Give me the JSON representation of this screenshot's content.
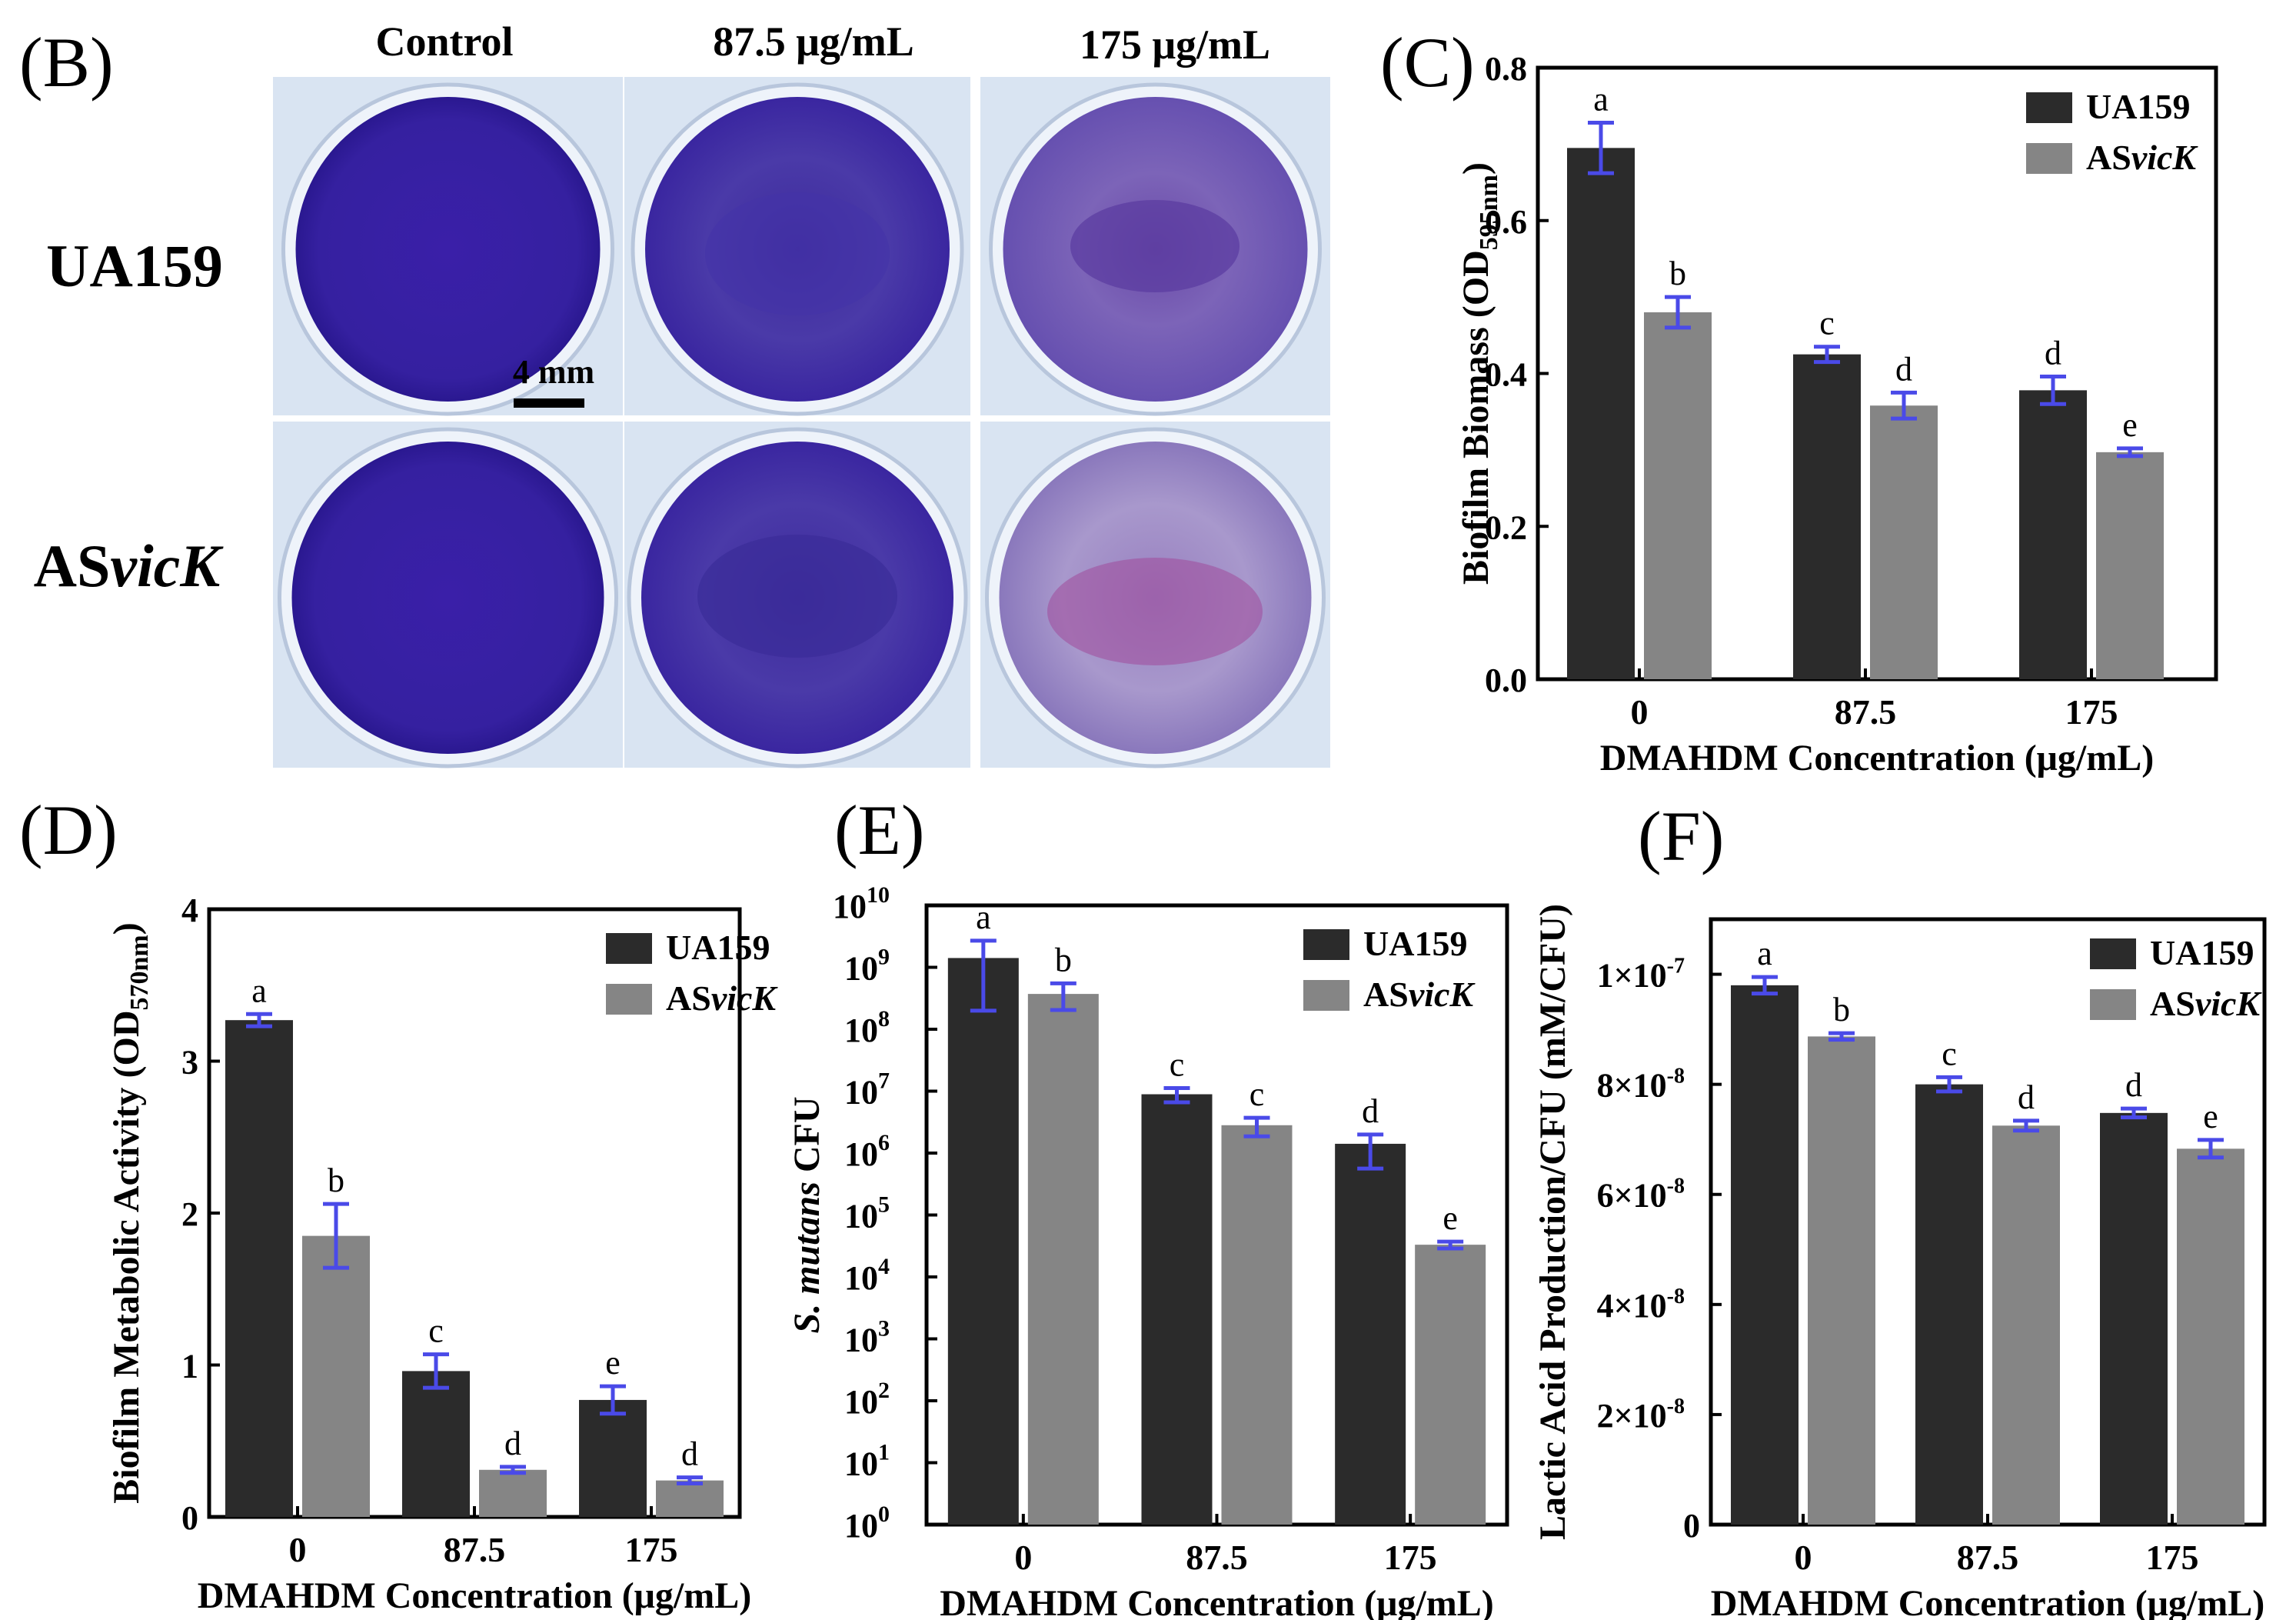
{
  "colors": {
    "ua159": "#2b2b2b",
    "asvick": "#858585",
    "error_bar": "#4a4ae8",
    "crystal_violet": "#3a1fa8",
    "plate_bg": "#d9e4f2"
  },
  "photo_panel": {
    "label": "(B)",
    "col_headers": [
      "Control",
      "87.5 μg/mL",
      "175 μg/mL"
    ],
    "row_labels": [
      {
        "prefix": "UA159",
        "italic": ""
      },
      {
        "prefix": "AS",
        "italic": "vicK"
      }
    ],
    "scale_bar_label": "4 mm"
  },
  "chart_data": [
    {
      "panel": "(C)",
      "type": "bar",
      "categories": [
        "0",
        "87.5",
        "175"
      ],
      "xlabel": "DMAHDM Concentration (μg/mL)",
      "ylabel": "Biofilm Biomass (OD",
      "ylabel_sub": "595nm",
      "ylabel_end": ")",
      "ylim": [
        0,
        0.8
      ],
      "yticks": [
        "0.0",
        "0.2",
        "0.4",
        "0.6",
        "0.8"
      ],
      "ytick_values": [
        0,
        0.2,
        0.4,
        0.6,
        0.8
      ],
      "scale": "linear",
      "legend": [
        {
          "prefix": "UA159",
          "italic": ""
        },
        {
          "prefix": "AS",
          "italic": "vicK"
        }
      ],
      "series": [
        {
          "name": "UA159",
          "values": [
            0.695,
            0.425,
            0.378
          ],
          "errors": [
            0.033,
            0.01,
            0.018
          ],
          "letters": [
            "a",
            "c",
            "d"
          ]
        },
        {
          "name": "ASvicK",
          "values": [
            0.48,
            0.358,
            0.297
          ],
          "errors": [
            0.02,
            0.017,
            0.005
          ],
          "letters": [
            "b",
            "d",
            "e"
          ]
        }
      ]
    },
    {
      "panel": "(D)",
      "type": "bar",
      "categories": [
        "0",
        "87.5",
        "175"
      ],
      "xlabel": "DMAHDM Concentration (μg/mL)",
      "ylabel": "Biofilm Metabolic Activity (OD",
      "ylabel_sub": "570nm",
      "ylabel_end": ")",
      "ylim": [
        0,
        4
      ],
      "yticks": [
        "0",
        "1",
        "2",
        "3",
        "4"
      ],
      "ytick_values": [
        0,
        1,
        2,
        3,
        4
      ],
      "scale": "linear",
      "legend": [
        {
          "prefix": "UA159",
          "italic": ""
        },
        {
          "prefix": "AS",
          "italic": "vicK"
        }
      ],
      "series": [
        {
          "name": "UA159",
          "values": [
            3.27,
            0.96,
            0.77
          ],
          "errors": [
            0.04,
            0.11,
            0.09
          ],
          "letters": [
            "a",
            "c",
            "e"
          ]
        },
        {
          "name": "ASvicK",
          "values": [
            1.85,
            0.31,
            0.24
          ],
          "errors": [
            0.21,
            0.02,
            0.02
          ],
          "letters": [
            "b",
            "d",
            "d"
          ]
        }
      ]
    },
    {
      "panel": "(E)",
      "type": "bar",
      "categories": [
        "0",
        "87.5",
        "175"
      ],
      "xlabel": "DMAHDM Concentration (μg/mL)",
      "ylabel_italic": "S. mutans",
      "ylabel": " CFU",
      "ylim": [
        0,
        10
      ],
      "ytick_base": "10",
      "yticks": [
        "0",
        "1",
        "2",
        "3",
        "4",
        "5",
        "6",
        "7",
        "8",
        "9",
        "10"
      ],
      "ytick_values": [
        0,
        1,
        2,
        3,
        4,
        5,
        6,
        7,
        8,
        9,
        10
      ],
      "scale": "log10",
      "legend": [
        {
          "prefix": "UA159",
          "italic": ""
        },
        {
          "prefix": "AS",
          "italic": "vicK"
        }
      ],
      "series": [
        {
          "name": "UA159",
          "values": [
            9.15,
            6.95,
            6.15
          ],
          "errors": [
            0.28,
            0.1,
            0.15
          ],
          "err_low": [
            0.85,
            0.13,
            0.4
          ],
          "letters": [
            "a",
            "c",
            "d"
          ]
        },
        {
          "name": "ASvicK",
          "values": [
            8.57,
            6.45,
            4.52
          ],
          "errors": [
            0.17,
            0.12,
            0.05
          ],
          "err_low": [
            0.26,
            0.18,
            0.06
          ],
          "letters": [
            "b",
            "c",
            "e"
          ]
        }
      ]
    },
    {
      "panel": "(F)",
      "type": "bar",
      "categories": [
        "0",
        "87.5",
        "175"
      ],
      "xlabel": "DMAHDM Concentration (μg/mL)",
      "ylabel": "Lactic Acid Production/CFU (mM/CFU)",
      "ylim": [
        0,
        1.1e-07
      ],
      "yticks": [
        "0",
        "2×10",
        "4×10",
        "6×10",
        "8×10",
        "1×10"
      ],
      "ytick_exps": [
        "",
        "-8",
        "-8",
        "-8",
        "-8",
        "-7"
      ],
      "ytick_values": [
        0,
        2e-08,
        4e-08,
        6e-08,
        8e-08,
        1e-07
      ],
      "scale": "linear",
      "legend": [
        {
          "prefix": "UA159",
          "italic": ""
        },
        {
          "prefix": "AS",
          "italic": "vicK"
        }
      ],
      "series": [
        {
          "name": "UA159",
          "values": [
            9.8e-08,
            8e-08,
            7.48e-08
          ],
          "errors": [
            1.5e-09,
            1.3e-09,
            8e-10
          ],
          "letters": [
            "a",
            "c",
            "d"
          ]
        },
        {
          "name": "ASvicK",
          "values": [
            8.87e-08,
            7.25e-08,
            6.83e-08
          ],
          "errors": [
            6e-10,
            9e-10,
            1.6e-09
          ],
          "letters": [
            "b",
            "d",
            "e"
          ]
        }
      ]
    }
  ]
}
